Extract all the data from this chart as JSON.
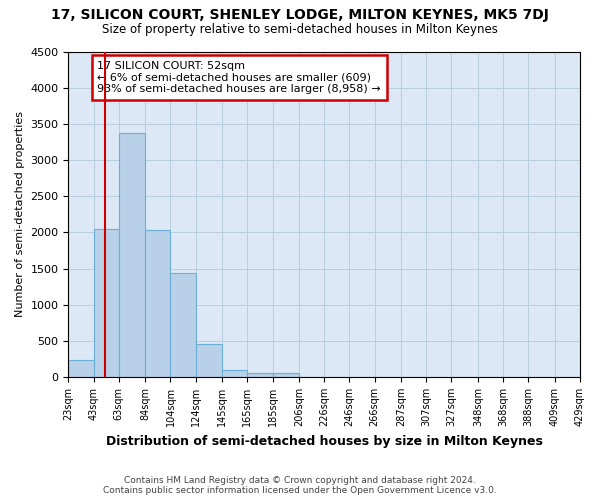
{
  "title": "17, SILICON COURT, SHENLEY LODGE, MILTON KEYNES, MK5 7DJ",
  "subtitle": "Size of property relative to semi-detached houses in Milton Keynes",
  "xlabel": "Distribution of semi-detached houses by size in Milton Keynes",
  "ylabel": "Number of semi-detached properties",
  "footer_line1": "Contains HM Land Registry data © Crown copyright and database right 2024.",
  "footer_line2": "Contains public sector information licensed under the Open Government Licence v3.0.",
  "annotation_title": "17 SILICON COURT: 52sqm",
  "annotation_line1": "← 6% of semi-detached houses are smaller (609)",
  "annotation_line2": "93% of semi-detached houses are larger (8,958) →",
  "property_size": 52,
  "bar_edges": [
    23,
    43,
    63,
    84,
    104,
    124,
    145,
    165,
    185,
    206,
    226,
    246,
    266,
    287,
    307,
    327,
    348,
    368,
    388,
    409,
    429
  ],
  "bar_heights": [
    240,
    2040,
    3370,
    2030,
    1440,
    460,
    95,
    55,
    60,
    0,
    0,
    0,
    0,
    0,
    0,
    0,
    0,
    0,
    0,
    0
  ],
  "bar_color": "#b8d0e8",
  "bar_edge_color": "#6baed6",
  "vline_color": "#cc0000",
  "vline_x": 52,
  "annotation_box_edge_color": "#cc0000",
  "background_color": "#ffffff",
  "plot_bg_color": "#dce8f5",
  "grid_color": "#b8cfe0",
  "ylim": [
    0,
    4500
  ],
  "yticks": [
    0,
    500,
    1000,
    1500,
    2000,
    2500,
    3000,
    3500,
    4000,
    4500
  ]
}
